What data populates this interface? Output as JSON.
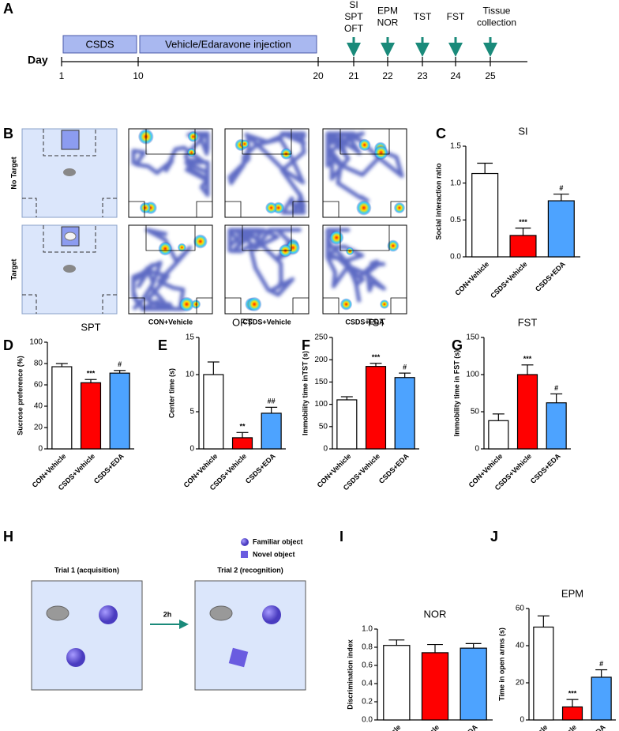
{
  "timeline": {
    "panel": "A",
    "axis_label": "Day",
    "ticks": [
      1,
      10,
      20,
      21,
      22,
      23,
      24,
      25
    ],
    "phases": [
      {
        "label": "CSDS",
        "start": 1,
        "end": 10
      },
      {
        "label": "Vehicle/Edaravone injection",
        "start": 10,
        "end": 20
      }
    ],
    "events": [
      {
        "day": 21,
        "lines": [
          "SI",
          "SPT",
          "OFT"
        ]
      },
      {
        "day": 22,
        "lines": [
          "EPM",
          "NOR"
        ]
      },
      {
        "day": 23,
        "lines": [
          "TST"
        ]
      },
      {
        "day": 24,
        "lines": [
          "FST"
        ]
      },
      {
        "day": 25,
        "lines": [
          "Tissue",
          "collection"
        ]
      }
    ]
  },
  "tracking": {
    "panel": "B",
    "rows": [
      "No Target",
      "Target"
    ],
    "columns": [
      "CON+Vehicle",
      "CSDS+Vehicle",
      "CSDS+EDA"
    ]
  },
  "nor_schematic": {
    "panel": "H",
    "legend": [
      "Familiar object",
      "Novel object"
    ],
    "trials": [
      "Trial 1 (acquisition)",
      "Trial 2 (recognition)"
    ],
    "interval": "2h"
  },
  "chart_data": [
    {
      "panel": "C",
      "type": "bar",
      "title": "SI",
      "y_label": "Social interaction ratio",
      "categories": [
        "CON+Vehicle",
        "CSDS+Vehicle",
        "CSDS+EDA"
      ],
      "values": [
        1.13,
        0.29,
        0.76
      ],
      "errors": [
        0.14,
        0.1,
        0.09
      ],
      "colors": [
        "#ffffff",
        "#ff0000",
        "#4da3ff"
      ],
      "annotations": [
        null,
        "***",
        "#"
      ],
      "ylim": [
        0,
        1.5
      ],
      "yticks": [
        {
          "value": 0,
          "label": "0.0"
        },
        0.5,
        {
          "value": 1,
          "label": "1.0"
        },
        1.5
      ]
    },
    {
      "panel": "D",
      "type": "bar",
      "title": "SPT",
      "y_label": "Sucrose preference (%)",
      "categories": [
        "CON+Vehicle",
        "CSDS+Vehicle",
        "CSDS+EDA"
      ],
      "values": [
        77,
        62,
        71
      ],
      "errors": [
        3,
        3,
        2.5
      ],
      "colors": [
        "#ffffff",
        "#ff0000",
        "#4da3ff"
      ],
      "annotations": [
        null,
        "***",
        "#"
      ],
      "ylim": [
        0,
        100
      ],
      "yticks": [
        0,
        20,
        40,
        60,
        80,
        100
      ]
    },
    {
      "panel": "E",
      "type": "bar",
      "title": "OFT",
      "y_label": "Center time (s)",
      "categories": [
        "CON+Vehicle",
        "CSDS+Vehicle",
        "CSDS+EDA"
      ],
      "values": [
        10,
        1.5,
        4.8
      ],
      "errors": [
        1.7,
        0.7,
        0.8
      ],
      "colors": [
        "#ffffff",
        "#ff0000",
        "#4da3ff"
      ],
      "annotations": [
        null,
        "**",
        "##"
      ],
      "ylim": [
        0,
        15
      ],
      "yticks": [
        0,
        5,
        10,
        15
      ]
    },
    {
      "panel": "F",
      "type": "bar",
      "title": "TST",
      "y_label": "Immobility time inTST (s)",
      "categories": [
        "CON+Vehicle",
        "CSDS+Vehicle",
        "CSDS+EDA"
      ],
      "values": [
        110,
        185,
        160
      ],
      "errors": [
        7,
        7,
        10
      ],
      "colors": [
        "#ffffff",
        "#ff0000",
        "#4da3ff"
      ],
      "annotations": [
        null,
        "***",
        "#"
      ],
      "ylim": [
        0,
        250
      ],
      "yticks": [
        0,
        50,
        100,
        150,
        200,
        250
      ]
    },
    {
      "panel": "G",
      "type": "bar",
      "title": "FST",
      "y_label": "Immobility time in FST (s)",
      "categories": [
        "CON+Vehicle",
        "CSDS+Vehicle",
        "CSDS+EDA"
      ],
      "values": [
        38,
        100,
        62
      ],
      "errors": [
        9,
        13,
        12
      ],
      "colors": [
        "#ffffff",
        "#ff0000",
        "#4da3ff"
      ],
      "annotations": [
        null,
        "***",
        "#"
      ],
      "ylim": [
        0,
        150
      ],
      "yticks": [
        0,
        50,
        100,
        150
      ]
    },
    {
      "panel": "I",
      "type": "bar",
      "title": "NOR",
      "y_label": "Discrimination index",
      "categories": [
        "CON+Vehicle",
        "CSDS+Vehicle",
        "CSDS+EDA"
      ],
      "values": [
        0.82,
        0.74,
        0.79
      ],
      "errors": [
        0.06,
        0.09,
        0.05
      ],
      "colors": [
        "#ffffff",
        "#ff0000",
        "#4da3ff"
      ],
      "ylim": [
        0,
        1
      ],
      "yticks": [
        {
          "value": 0,
          "label": "0.0"
        },
        0.2,
        0.4,
        0.6,
        0.8,
        {
          "value": 1,
          "label": "1.0"
        }
      ]
    },
    {
      "panel": "J",
      "type": "bar",
      "title": "EPM",
      "y_label": "Time in open arms (s)",
      "categories": [
        "CON+Vehicle",
        "CSDS+Vehicle",
        "CSDS+EDA"
      ],
      "values": [
        50,
        7,
        23
      ],
      "errors": [
        6,
        4,
        4
      ],
      "colors": [
        "#ffffff",
        "#ff0000",
        "#4da3ff"
      ],
      "annotations": [
        null,
        "***",
        "#"
      ],
      "ylim": [
        0,
        60
      ],
      "yticks": [
        0,
        20,
        40,
        60
      ]
    }
  ]
}
